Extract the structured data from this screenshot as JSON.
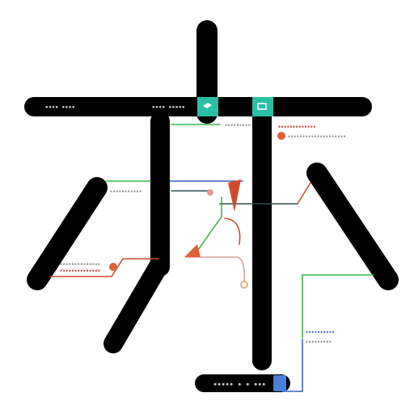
{
  "diagram": {
    "bar_labels": {
      "left": "▪▪▪▪ ▪▪▪▪",
      "center": "▪▪▪▪ ▪▪▪▪▪"
    },
    "annotations": {
      "top_mid": "▪▪▪▪▪▪▪▪▪",
      "top_right_1": "▪▪▪▪▪▪▪▪▪▪▪▪▪",
      "top_right_2": "▪▪▪▪▪▪▪▪▪▪▪▪▪▪▪▪▪▪▪▪",
      "left_mid": "▪▪▪▪▪▪▪▪▪▪▪",
      "left_low_1": "▪▪▪▪▪▪▪▪▪▪▪▪▪▪",
      "left_low_2": "▪▪▪▪▪▪▪▪▪▪▪▪▪▪",
      "right_low_1": "▪▪▪▪▪▪▪▪▪▪",
      "right_low_2": "▪▪▪▪▪▪▪▪▪"
    },
    "footer_label": "▪▪▪▪▪ ▪ ▪ ▪▪▪",
    "colors": {
      "stroke": "#000000",
      "teal": "#2bbfa6",
      "green": "#3cb44b",
      "blue": "#3a5fc8",
      "red": "#d04a2a",
      "pink": "#d98a8a",
      "orange": "#e0603a"
    }
  }
}
